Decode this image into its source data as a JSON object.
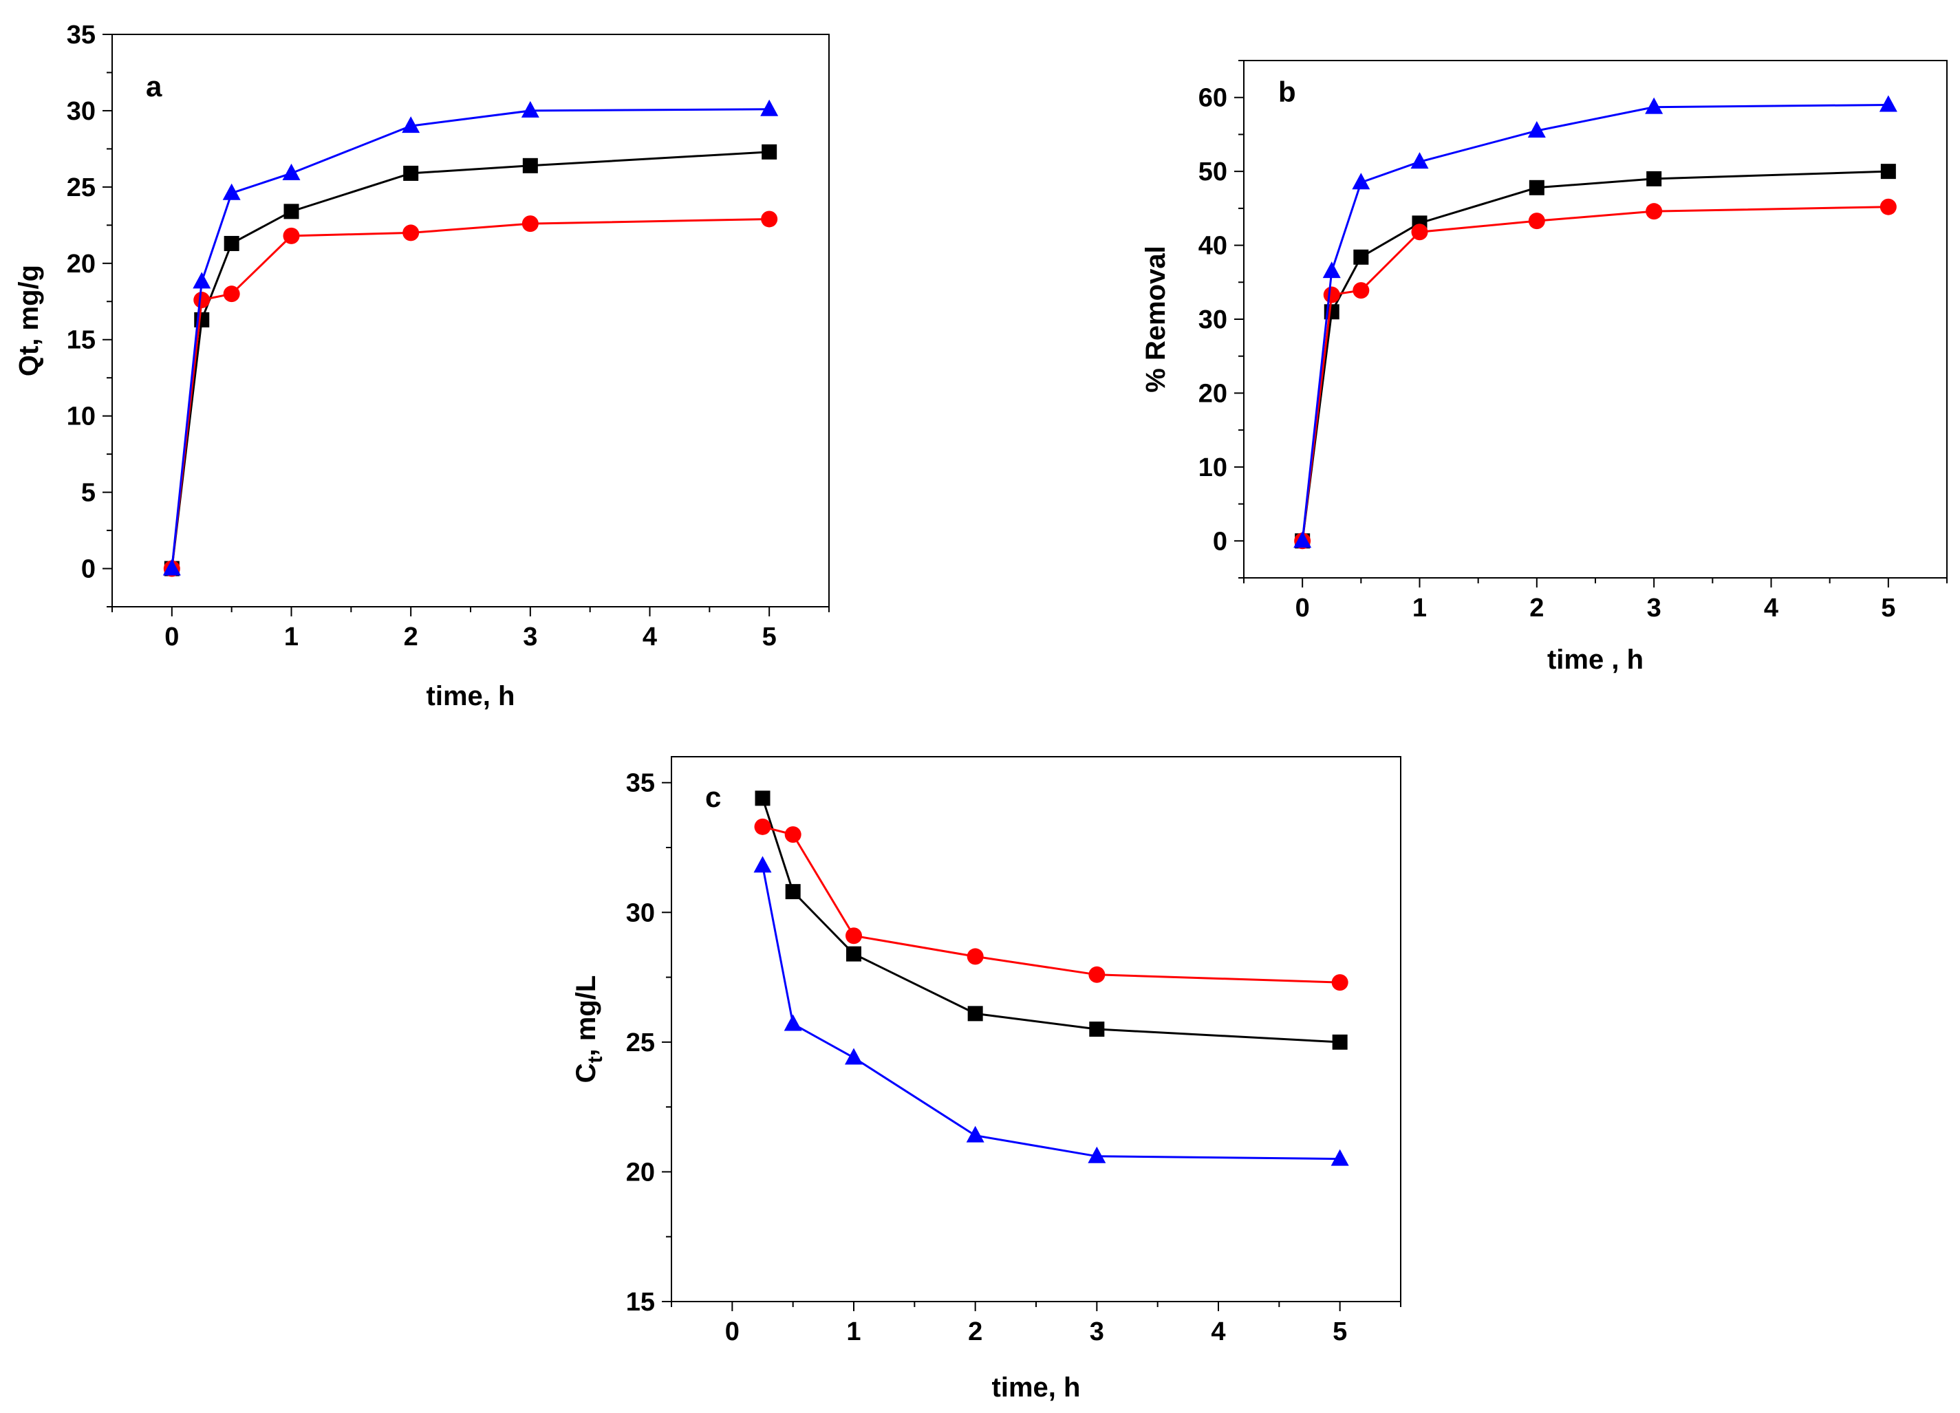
{
  "chart_data": [
    {
      "type": "line",
      "panel_label": "a",
      "xlabel": "time, h",
      "ylabel": "Qt, mg/g",
      "xlim": [
        -0.5,
        5.5
      ],
      "ylim": [
        -2.5,
        35
      ],
      "xticks": [
        0,
        1,
        2,
        3,
        4,
        5
      ],
      "yticks": [
        0,
        5,
        10,
        15,
        20,
        25,
        30,
        35
      ],
      "grid": false,
      "series": [
        {
          "marker": "square",
          "color": "#000000",
          "x": [
            0,
            0.25,
            0.5,
            1,
            2,
            3,
            5
          ],
          "y": [
            0,
            16.3,
            21.3,
            23.4,
            25.9,
            26.4,
            27.3
          ]
        },
        {
          "marker": "circle",
          "color": "#ff0000",
          "x": [
            0,
            0.25,
            0.5,
            1,
            2,
            3,
            5
          ],
          "y": [
            0,
            17.6,
            18.0,
            21.8,
            22.0,
            22.6,
            22.9
          ]
        },
        {
          "marker": "triangle",
          "color": "#0000ff",
          "x": [
            0,
            0.25,
            0.5,
            1,
            2,
            3,
            5
          ],
          "y": [
            0,
            18.8,
            24.6,
            25.9,
            29.0,
            30.0,
            30.1
          ]
        }
      ]
    },
    {
      "type": "line",
      "panel_label": "b",
      "xlabel": "time , h",
      "ylabel": "% Removal",
      "xlim": [
        -0.5,
        5.5
      ],
      "ylim": [
        -5,
        65
      ],
      "xticks": [
        0,
        1,
        2,
        3,
        4,
        5
      ],
      "yticks": [
        0,
        10,
        20,
        30,
        40,
        50,
        60
      ],
      "grid": false,
      "series": [
        {
          "marker": "square",
          "color": "#000000",
          "x": [
            0,
            0.25,
            0.5,
            1,
            2,
            3,
            5
          ],
          "y": [
            0,
            31.0,
            38.4,
            43.0,
            47.8,
            49.0,
            50.0
          ]
        },
        {
          "marker": "circle",
          "color": "#ff0000",
          "x": [
            0,
            0.25,
            0.5,
            1,
            2,
            3,
            5
          ],
          "y": [
            0,
            33.3,
            33.9,
            41.8,
            43.3,
            44.6,
            45.2
          ]
        },
        {
          "marker": "triangle",
          "color": "#0000ff",
          "x": [
            0,
            0.25,
            0.5,
            1,
            2,
            3,
            5
          ],
          "y": [
            0,
            36.5,
            48.5,
            51.3,
            55.5,
            58.7,
            59.0
          ]
        }
      ]
    },
    {
      "type": "line",
      "panel_label": "c",
      "xlabel": "time, h",
      "ylabel_main": "C",
      "ylabel_sub": "t",
      "ylabel_rest": ", mg/L",
      "xlim": [
        -0.5,
        5.5
      ],
      "ylim": [
        15,
        36
      ],
      "xticks": [
        0,
        1,
        2,
        3,
        4,
        5
      ],
      "yticks": [
        15,
        20,
        25,
        30,
        35
      ],
      "grid": false,
      "series": [
        {
          "marker": "square",
          "color": "#000000",
          "x": [
            0.25,
            0.5,
            1,
            2,
            3,
            5
          ],
          "y": [
            34.4,
            30.8,
            28.4,
            26.1,
            25.5,
            25.0
          ]
        },
        {
          "marker": "circle",
          "color": "#ff0000",
          "x": [
            0.25,
            0.5,
            1,
            2,
            3,
            5
          ],
          "y": [
            33.3,
            33.0,
            29.1,
            28.3,
            27.6,
            27.3
          ]
        },
        {
          "marker": "triangle",
          "color": "#0000ff",
          "x": [
            0.25,
            0.5,
            1,
            2,
            3,
            5
          ],
          "y": [
            31.8,
            25.7,
            24.4,
            21.4,
            20.6,
            20.5
          ]
        }
      ]
    }
  ]
}
